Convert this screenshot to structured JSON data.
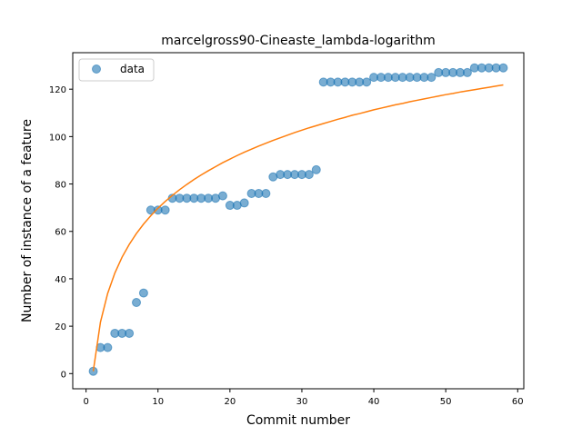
{
  "chart_data": {
    "type": "scatter",
    "title": "marcelgross90-Cineaste_lambda-logarithm",
    "xlabel": "Commit number",
    "ylabel": "Number of instance of a feature",
    "xlim": [
      -1.85,
      60.85
    ],
    "ylim": [
      -6.4,
      135.4
    ],
    "xticks": [
      0,
      10,
      20,
      30,
      40,
      50,
      60
    ],
    "yticks": [
      0,
      20,
      40,
      60,
      80,
      100,
      120
    ],
    "grid": false,
    "legend_position": "top-left",
    "series": [
      {
        "name": "data",
        "kind": "scatter",
        "color": "#1f77b4",
        "x": [
          1,
          2,
          3,
          4,
          5,
          6,
          7,
          8,
          9,
          10,
          11,
          12,
          13,
          14,
          15,
          16,
          17,
          18,
          19,
          20,
          21,
          22,
          23,
          24,
          25,
          26,
          27,
          28,
          29,
          30,
          31,
          32,
          33,
          34,
          35,
          36,
          37,
          38,
          39,
          40,
          41,
          42,
          43,
          44,
          45,
          46,
          47,
          48,
          49,
          50,
          51,
          52,
          53,
          54,
          55,
          56,
          57,
          58
        ],
        "y": [
          1,
          11,
          11,
          17,
          17,
          17,
          30,
          34,
          69,
          69,
          69,
          74,
          74,
          74,
          74,
          74,
          74,
          74,
          75,
          71,
          71,
          72,
          76,
          76,
          76,
          83,
          84,
          84,
          84,
          84,
          84,
          86,
          123,
          123,
          123,
          123,
          123,
          123,
          123,
          125,
          125,
          125,
          125,
          125,
          125,
          125,
          125,
          125,
          127,
          127,
          127,
          127,
          127,
          129,
          129,
          129,
          129,
          129
        ]
      },
      {
        "kind": "line",
        "color": "#ff7f0e",
        "x": [
          1,
          2,
          3,
          4,
          5,
          6,
          7,
          8,
          9,
          10,
          11,
          12,
          13,
          14,
          15,
          16,
          17,
          18,
          19,
          20,
          21,
          22,
          23,
          24,
          25,
          26,
          27,
          28,
          29,
          30,
          31,
          32,
          33,
          34,
          35,
          36,
          37,
          38,
          39,
          40,
          41,
          42,
          43,
          44,
          45,
          46,
          47,
          48,
          49,
          50,
          51,
          52,
          53,
          54,
          55,
          56,
          57,
          58
        ],
        "y": [
          1.0,
          21.7,
          33.8,
          42.4,
          49.1,
          54.5,
          59.1,
          63.1,
          66.6,
          69.8,
          72.6,
          75.2,
          77.6,
          79.8,
          81.9,
          83.8,
          85.6,
          87.3,
          89.0,
          90.5,
          92.0,
          93.4,
          94.7,
          96.0,
          97.2,
          98.4,
          99.5,
          100.6,
          101.7,
          102.7,
          103.7,
          104.6,
          105.5,
          106.4,
          107.3,
          108.1,
          109.0,
          109.7,
          110.5,
          111.3,
          112.0,
          112.7,
          113.4,
          114.0,
          114.7,
          115.3,
          115.9,
          116.5,
          117.1,
          117.7,
          118.2,
          118.8,
          119.3,
          119.8,
          120.3,
          120.8,
          121.3,
          121.8
        ]
      }
    ]
  }
}
